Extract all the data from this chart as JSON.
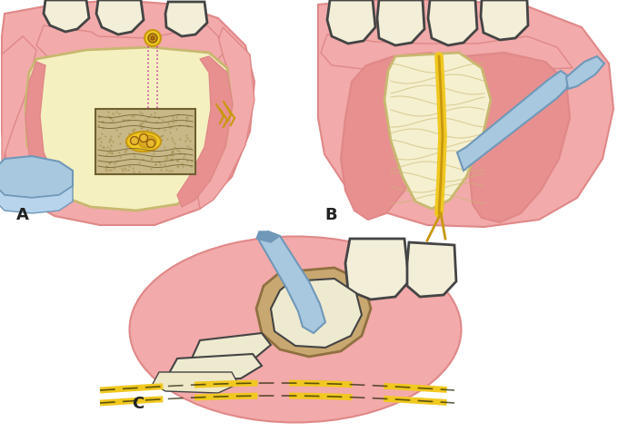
{
  "background_color": "#ffffff",
  "label_A": "A",
  "label_B": "B",
  "label_C": "C",
  "label_fontsize": 13,
  "label_color": "#222222",
  "fig_width": 6.8,
  "fig_height": 4.76,
  "dpi": 100,
  "pink_gum": "#F2AAAA",
  "pink_gum_dark": "#E08888",
  "pink_inner": "#E89090",
  "cream_flap": "#F5F0C0",
  "cream_flap_edge": "#C8B870",
  "tooth_color": "#F2EED8",
  "tooth_outline": "#444444",
  "yellow_nerve": "#F0C820",
  "yellow_nerve_dark": "#C89810",
  "blue_instrument": "#A8C8E0",
  "blue_instrument_dark": "#7098B8",
  "tan_bone": "#C8A870",
  "tan_bone_dark": "#907040",
  "nerve_box_bg": "#C8B888",
  "dashed_yellow": "#F0C820",
  "dashed_black": "#222200",
  "dotted_pink": "#CC44AA"
}
